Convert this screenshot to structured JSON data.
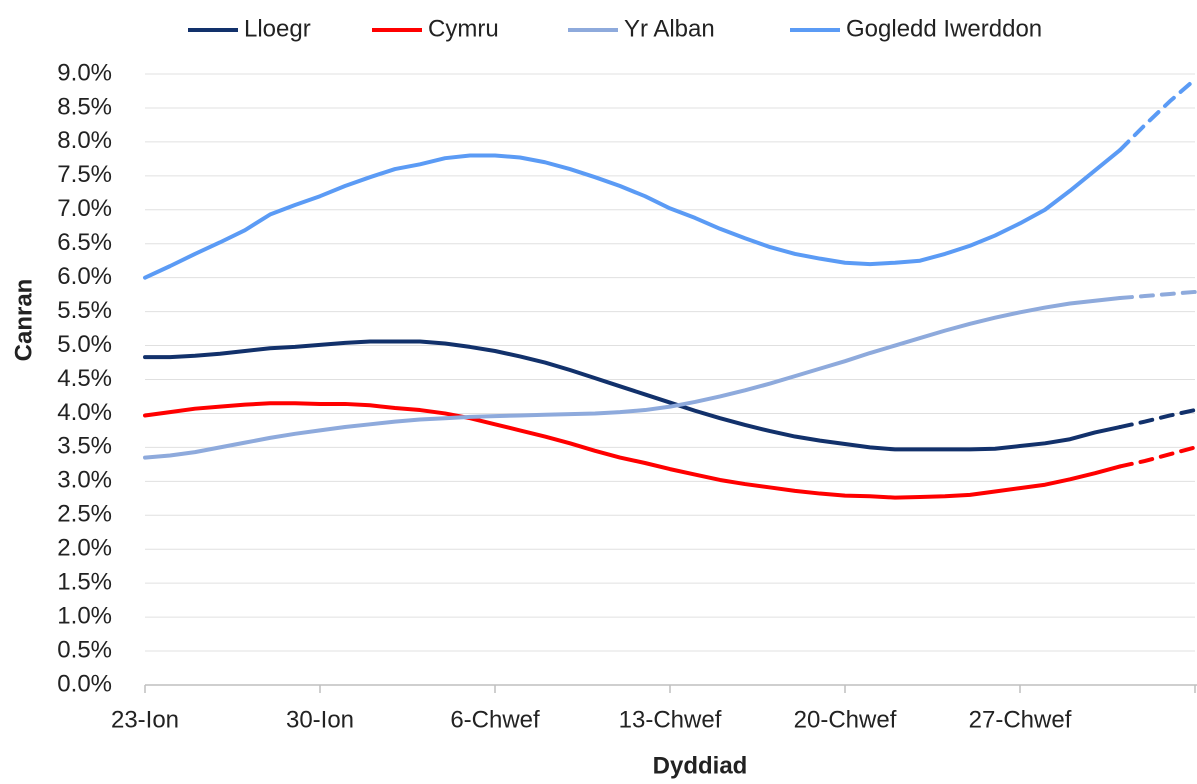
{
  "chart_data": {
    "type": "line",
    "xlabel": "Dyddiad",
    "ylabel": "Canran",
    "categories": [
      "23-Ion",
      null,
      null,
      null,
      null,
      null,
      null,
      "30-Ion",
      null,
      null,
      null,
      null,
      null,
      null,
      "6-Chwef",
      null,
      null,
      null,
      null,
      null,
      null,
      "13-Chwef",
      null,
      null,
      null,
      null,
      null,
      null,
      "20-Chwef",
      null,
      null,
      null,
      null,
      null,
      null,
      "27-Chwef",
      null,
      null,
      null,
      null,
      null,
      null,
      null
    ],
    "dash_from_index": 39,
    "legend": "top",
    "grid": true,
    "ylim": [
      0,
      9
    ],
    "yticks": [
      {
        "value": 0,
        "label": "0.0%"
      },
      {
        "value": 0.5,
        "label": "0.5%"
      },
      {
        "value": 1,
        "label": "1.0%"
      },
      {
        "value": 1.5,
        "label": "1.5%"
      },
      {
        "value": 2,
        "label": "2.0%"
      },
      {
        "value": 2.5,
        "label": "2.5%"
      },
      {
        "value": 3,
        "label": "3.0%"
      },
      {
        "value": 3.5,
        "label": "3.5%"
      },
      {
        "value": 4,
        "label": "4.0%"
      },
      {
        "value": 4.5,
        "label": "4.5%"
      },
      {
        "value": 5,
        "label": "5.0%"
      },
      {
        "value": 5.5,
        "label": "5.5%"
      },
      {
        "value": 6,
        "label": "6.0%"
      },
      {
        "value": 6.5,
        "label": "6.5%"
      },
      {
        "value": 7,
        "label": "7.0%"
      },
      {
        "value": 7.5,
        "label": "7.5%"
      },
      {
        "value": 8,
        "label": "8.0%"
      },
      {
        "value": 8.5,
        "label": "8.5%"
      },
      {
        "value": 9,
        "label": "9.0%"
      }
    ],
    "series": [
      {
        "name": "Lloegr",
        "color": "#12316b",
        "values": [
          4.83,
          4.83,
          4.85,
          4.88,
          4.92,
          4.96,
          4.98,
          5.01,
          5.04,
          5.06,
          5.06,
          5.06,
          5.03,
          4.98,
          4.92,
          4.84,
          4.75,
          4.64,
          4.52,
          4.4,
          4.28,
          4.16,
          4.04,
          3.93,
          3.83,
          3.74,
          3.66,
          3.6,
          3.55,
          3.5,
          3.47,
          3.47,
          3.47,
          3.47,
          3.48,
          3.52,
          3.56,
          3.62,
          3.72,
          3.8,
          3.88,
          3.97,
          4.05
        ]
      },
      {
        "name": "Cymru",
        "color": "#ff0000",
        "values": [
          3.97,
          4.02,
          4.07,
          4.1,
          4.13,
          4.15,
          4.15,
          4.14,
          4.14,
          4.12,
          4.08,
          4.05,
          4.0,
          3.93,
          3.84,
          3.75,
          3.66,
          3.56,
          3.45,
          3.35,
          3.27,
          3.18,
          3.1,
          3.02,
          2.96,
          2.91,
          2.86,
          2.82,
          2.79,
          2.78,
          2.76,
          2.77,
          2.78,
          2.8,
          2.85,
          2.9,
          2.95,
          3.03,
          3.12,
          3.22,
          3.3,
          3.4,
          3.5
        ]
      },
      {
        "name": "Yr Alban",
        "color": "#8eaadc",
        "values": [
          3.35,
          3.38,
          3.43,
          3.5,
          3.57,
          3.64,
          3.7,
          3.75,
          3.8,
          3.84,
          3.88,
          3.91,
          3.93,
          3.95,
          3.96,
          3.97,
          3.98,
          3.99,
          4.0,
          4.02,
          4.05,
          4.1,
          4.17,
          4.25,
          4.34,
          4.44,
          4.55,
          4.66,
          4.77,
          4.89,
          5.0,
          5.11,
          5.22,
          5.32,
          5.41,
          5.49,
          5.56,
          5.62,
          5.66,
          5.7,
          5.73,
          5.76,
          5.79
        ]
      },
      {
        "name": "Gogledd Iwerddon",
        "color": "#5b9bf5",
        "values": [
          6.0,
          6.17,
          6.35,
          6.52,
          6.7,
          6.93,
          7.07,
          7.2,
          7.35,
          7.48,
          7.6,
          7.67,
          7.76,
          7.8,
          7.8,
          7.77,
          7.7,
          7.6,
          7.48,
          7.35,
          7.2,
          7.02,
          6.88,
          6.72,
          6.58,
          6.45,
          6.35,
          6.28,
          6.22,
          6.2,
          6.22,
          6.25,
          6.35,
          6.47,
          6.62,
          6.8,
          7.0,
          7.28,
          7.58,
          7.88,
          8.25,
          8.6,
          8.92
        ]
      }
    ]
  }
}
